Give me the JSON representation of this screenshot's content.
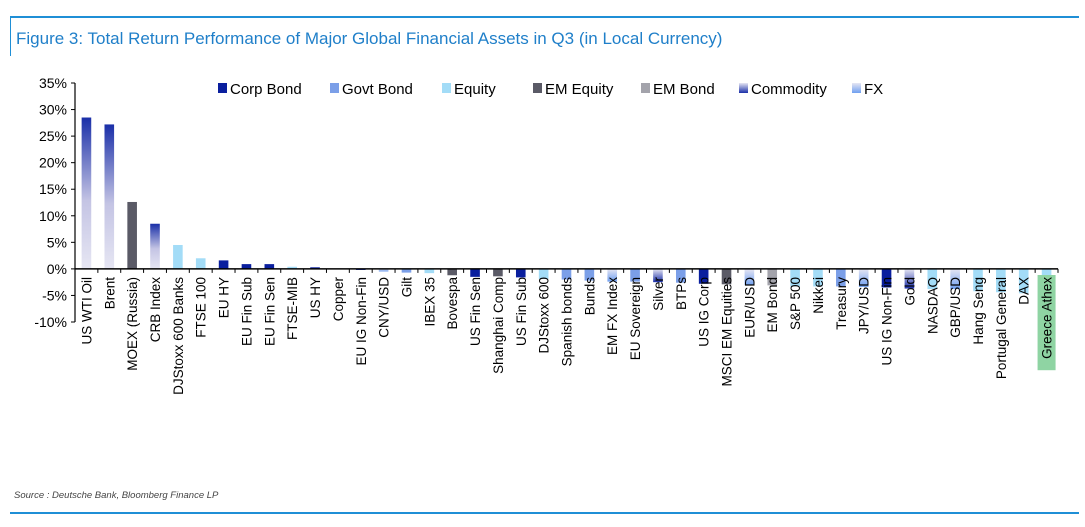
{
  "title": "Figure 3: Total Return Performance of Major Global Financial Assets in Q3 (in Local Currency)",
  "source": "Source : Deutsche Bank, Bloomberg Finance LP",
  "colors": {
    "Corp Bond": "#0a1f9e",
    "Govt Bond": "#7b9fe8",
    "Equity": "#a3dcf7",
    "EM Equity": "#5a5a66",
    "EM Bond": "#a3a3ab",
    "Commodity": "#1a2fa8",
    "FX": "#7ab0f2",
    "highlight": "#8fd4a3",
    "title": "#1f7fc9"
  },
  "chart_data": {
    "type": "bar",
    "title": "Figure 3: Total Return Performance of Major Global Financial Assets in Q3 (in Local Currency)",
    "xlabel": "",
    "ylabel": "",
    "ylim": [
      -10,
      35
    ],
    "yticks": [
      "-10%",
      "-5%",
      "0%",
      "5%",
      "10%",
      "15%",
      "20%",
      "25%",
      "30%",
      "35%"
    ],
    "ytick_values": [
      -10,
      -5,
      0,
      5,
      10,
      15,
      20,
      25,
      30,
      35
    ],
    "legend": [
      "Corp Bond",
      "Govt Bond",
      "Equity",
      "EM Equity",
      "EM Bond",
      "Commodity",
      "FX"
    ],
    "legend_position": "top",
    "highlighted": "Greece Athex",
    "categories": [
      "US WTI Oil",
      "Brent",
      "MOEX (Russia)",
      "CRB Index",
      "DJStoxx 600 Banks",
      "FTSE 100",
      "EU HY",
      "EU Fin Sub",
      "EU Fin Sen",
      "FTSE-MIB",
      "US HY",
      "Copper",
      "EU IG Non-Fin",
      "CNY/USD",
      "Gilt",
      "IBEX 35",
      "Bovespa",
      "US Fin Sen",
      "Shanghai Comp",
      "US Fin Sub",
      "DJStoxx 600",
      "Spanish bonds",
      "Bunds",
      "EM FX Index",
      "EU Sovereign",
      "Silver",
      "BTPs",
      "US IG Corp",
      "MSCI EM Equities",
      "EUR/USD",
      "EM Bond",
      "S&P 500",
      "Nikkei",
      "Treasury",
      "JPY/USD",
      "US IG Non-Fin",
      "Gold",
      "NASDAQ",
      "GBP/USD",
      "Hang Seng",
      "Portugal General",
      "DAX",
      "Greece Athex"
    ],
    "classes": [
      "Commodity",
      "Commodity",
      "EM Equity",
      "Commodity",
      "Equity",
      "Equity",
      "Corp Bond",
      "Corp Bond",
      "Corp Bond",
      "Equity",
      "Corp Bond",
      "Commodity",
      "Corp Bond",
      "FX",
      "Govt Bond",
      "Equity",
      "EM Equity",
      "Corp Bond",
      "EM Equity",
      "Corp Bond",
      "Equity",
      "Govt Bond",
      "Govt Bond",
      "FX",
      "Govt Bond",
      "Commodity",
      "Govt Bond",
      "Corp Bond",
      "EM Equity",
      "FX",
      "EM Bond",
      "Equity",
      "Equity",
      "Govt Bond",
      "FX",
      "Corp Bond",
      "Commodity",
      "Equity",
      "FX",
      "Equity",
      "Equity",
      "Equity",
      "Equity"
    ],
    "values": [
      28.5,
      27.2,
      12.6,
      8.5,
      4.5,
      2.0,
      1.6,
      0.9,
      0.9,
      0.4,
      0.3,
      0.0,
      -0.2,
      -0.5,
      -0.7,
      -0.8,
      -1.2,
      -1.5,
      -1.4,
      -1.6,
      -1.9,
      -2.0,
      -2.2,
      -2.4,
      -2.4,
      -2.5,
      -2.6,
      -2.8,
      -2.9,
      -3.1,
      -3.1,
      -3.3,
      -3.3,
      -3.3,
      -3.4,
      -3.5,
      -3.7,
      -3.8,
      -3.8,
      -4.2,
      -4.4,
      -4.6,
      -5.0
    ]
  }
}
